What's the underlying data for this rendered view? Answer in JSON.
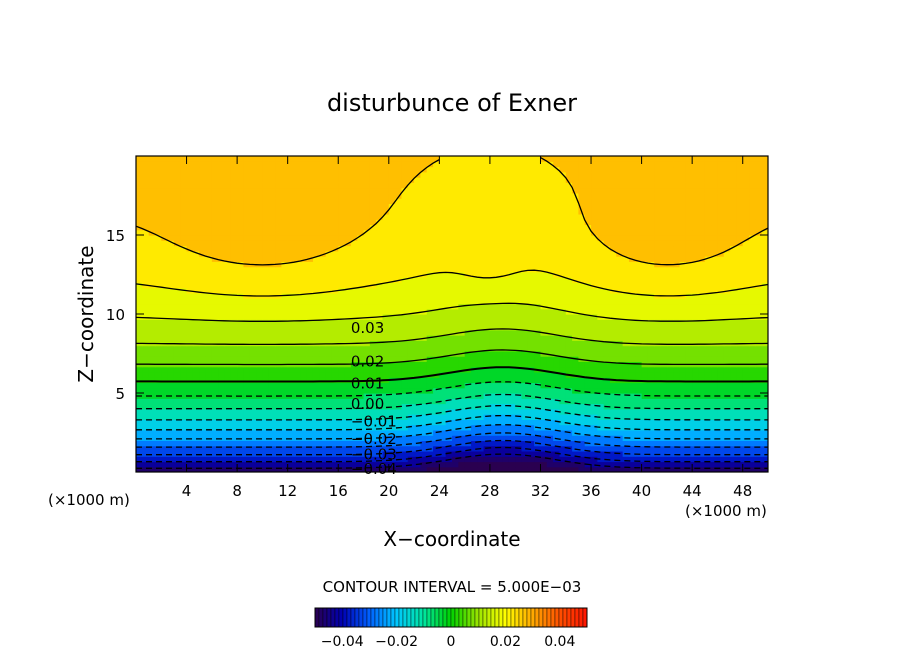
{
  "chart_data": {
    "type": "contour",
    "title": "disturbunce of Exner",
    "xlabel": "X−coordinate",
    "ylabel": "Z−coordinate",
    "x_unit_left": "(×1000 m)",
    "x_unit_right": "(×1000 m)",
    "xlim": [
      0,
      50
    ],
    "ylim": [
      0,
      20
    ],
    "x_ticks": [
      4,
      8,
      12,
      16,
      20,
      24,
      28,
      32,
      36,
      40,
      44,
      48
    ],
    "y_ticks": [
      5,
      10,
      15
    ],
    "contour_interval_text": "CONTOUR INTERVAL = 5.000E−03",
    "contour_labels": [
      {
        "text": "0.03",
        "value": 0.03,
        "x": 17.0,
        "z": 9.1
      },
      {
        "text": "0.02",
        "value": 0.02,
        "x": 17.0,
        "z": 7.0
      },
      {
        "text": "0.01",
        "value": 0.01,
        "x": 17.0,
        "z": 5.6
      },
      {
        "text": "0.00",
        "value": 0.0,
        "x": 17.0,
        "z": 4.3
      },
      {
        "text": "−0.01",
        "value": -0.01,
        "x": 17.0,
        "z": 3.2
      },
      {
        "text": "−0.02",
        "value": -0.02,
        "x": 17.0,
        "z": 2.1
      },
      {
        "text": "−0.03",
        "value": -0.03,
        "x": 17.0,
        "z": 1.1
      },
      {
        "text": "−0.04",
        "value": -0.04,
        "x": 17.0,
        "z": 0.2
      }
    ],
    "colorbar": {
      "range": [
        -0.05,
        0.05
      ],
      "ticks": [
        -0.04,
        -0.02,
        0,
        0.02,
        0.04
      ],
      "tick_labels": [
        "−0.04",
        "−0.02",
        "0",
        "0.02",
        "0.04"
      ]
    },
    "colormap": [
      "#2a0050",
      "#0000b4",
      "#0060ff",
      "#00c8ff",
      "#00e6a0",
      "#00d200",
      "#9be600",
      "#ffff00",
      "#ffaa00",
      "#ff5000",
      "#ff1400"
    ]
  }
}
